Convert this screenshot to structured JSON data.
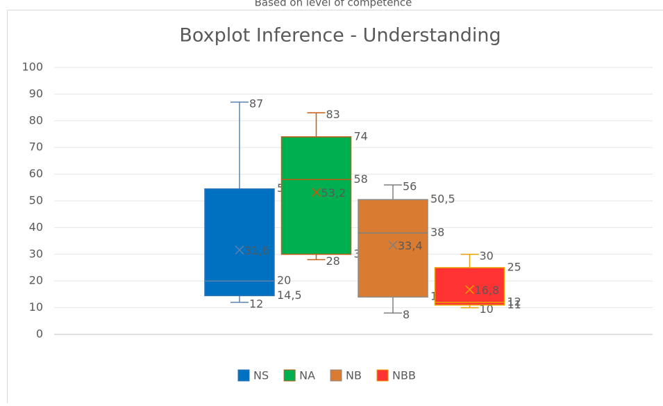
{
  "chart_data": {
    "type": "boxplot",
    "header": "Based on level of competence",
    "title": "Boxplot Inference - Understanding",
    "ylim": [
      0,
      100
    ],
    "yticks": [
      0,
      10,
      20,
      30,
      40,
      50,
      60,
      70,
      80,
      90,
      100
    ],
    "grid": true,
    "legend": "bottom",
    "series": [
      {
        "name": "NS",
        "color": "#0070c0",
        "border": "#2e75b6",
        "whisker": "#5b82ad",
        "min": 12,
        "q1": 14.5,
        "median": 20,
        "q3": 54.5,
        "max": 87,
        "mean": 31.6,
        "value_labels": {
          "q1": "14,5",
          "q3": "54,5",
          "mean": "31,6"
        }
      },
      {
        "name": "NA",
        "color": "#00b050",
        "border": "#c55a11",
        "whisker": "#c55a11",
        "min": 28,
        "q1": 30,
        "median": 58,
        "q3": 74,
        "max": 83,
        "mean": 53.2,
        "value_labels": {
          "mean": "53,2"
        }
      },
      {
        "name": "NB",
        "color": "#d97b30",
        "border": "#8c8c8c",
        "whisker": "#7f7f7f",
        "min": 8,
        "q1": 14,
        "median": 38,
        "q3": 50.5,
        "max": 56,
        "mean": 33.4,
        "value_labels": {
          "q3": "50,5",
          "mean": "33,4"
        }
      },
      {
        "name": "NBB",
        "color": "#ff3333",
        "border": "#e6a100",
        "whisker": "#e6a100",
        "min": 10,
        "q1": 11,
        "median": 12,
        "q3": 25,
        "max": 30,
        "mean": 16.8,
        "value_labels": {
          "mean": "16,8"
        }
      }
    ]
  }
}
